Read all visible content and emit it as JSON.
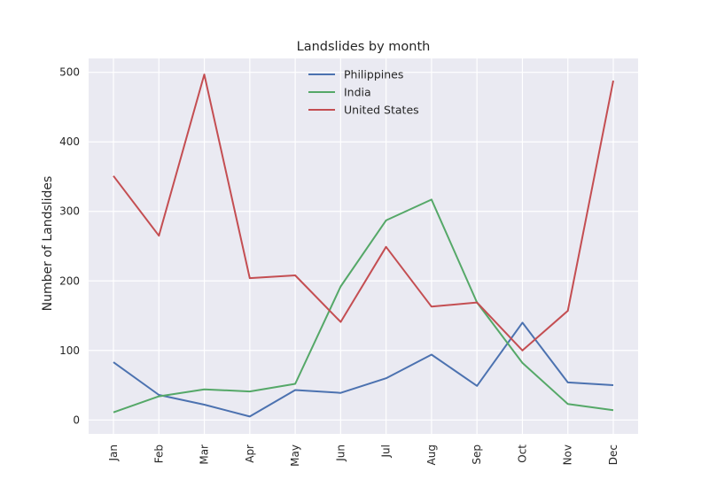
{
  "chart_data": {
    "type": "line",
    "title": "Landslides by month",
    "xlabel": "",
    "ylabel": "Number of Landslides",
    "categories": [
      "Jan",
      "Feb",
      "Mar",
      "Apr",
      "May",
      "Jun",
      "Jul",
      "Aug",
      "Sep",
      "Oct",
      "Nov",
      "Dec"
    ],
    "ylim": [
      -20,
      520
    ],
    "yticks": [
      0,
      100,
      200,
      300,
      400,
      500
    ],
    "grid": true,
    "legend_position": "top-center",
    "series": [
      {
        "name": "Philippines",
        "color": "#4c72b0",
        "values": [
          83,
          36,
          22,
          5,
          43,
          39,
          60,
          94,
          49,
          140,
          54,
          50
        ]
      },
      {
        "name": "India",
        "color": "#55a868",
        "values": [
          11,
          34,
          44,
          41,
          52,
          192,
          287,
          317,
          169,
          82,
          23,
          14
        ]
      },
      {
        "name": "United States",
        "color": "#c44e52",
        "values": [
          351,
          265,
          497,
          204,
          208,
          141,
          249,
          163,
          169,
          100,
          157,
          488
        ]
      }
    ]
  }
}
